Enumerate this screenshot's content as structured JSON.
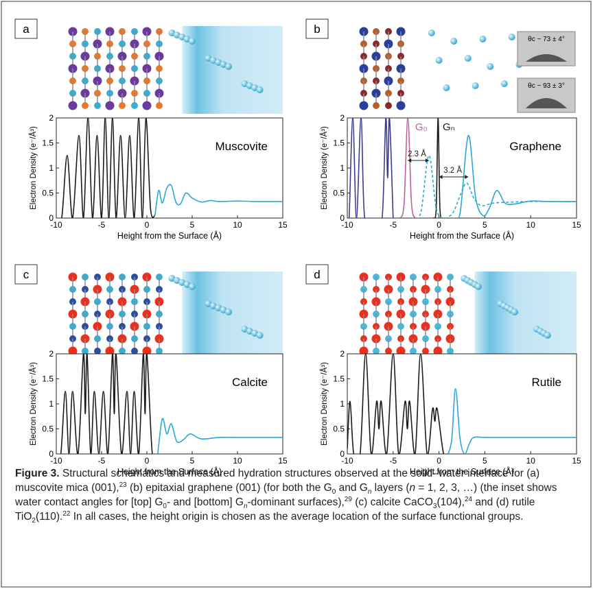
{
  "chart_data": [
    {
      "type": "line",
      "panel_label": "a",
      "annotation": "Muscovite",
      "xlabel": "Height from the Surface (Å)",
      "ylabel": "Electron Density (e⁻/Å³)",
      "xlim": [
        -10,
        15
      ],
      "ylim": [
        0,
        2
      ],
      "xticks": [
        -10,
        -5,
        0,
        5,
        10,
        15
      ],
      "yticks": [
        0,
        0.5,
        1,
        1.5,
        2
      ],
      "series": [
        {
          "color": "#1a1a1a",
          "dash": false,
          "x": [
            -10,
            -9.4,
            -8.8,
            -8.2,
            -7.5,
            -7.0,
            -6.5,
            -6.0,
            -5.5,
            -5.0,
            -4.6,
            -4.2,
            -3.8,
            -3.4,
            -2.9,
            -2.4,
            -1.9,
            -1.4,
            -0.9,
            -0.5,
            -0.1,
            0.4,
            0.9
          ],
          "values": [
            0,
            0,
            1.25,
            0,
            1.65,
            0,
            2,
            0,
            1.65,
            0,
            2,
            0,
            2,
            0,
            1.65,
            0,
            1.65,
            0,
            2,
            0,
            2,
            0.2,
            0.05
          ]
        },
        {
          "color": "#2aa7d8",
          "dash": false,
          "x": [
            0.9,
            1.3,
            1.7,
            2.2,
            2.7,
            3.2,
            3.7,
            4.3,
            5.0,
            6.0,
            7.0,
            8.0,
            10,
            12,
            15
          ],
          "values": [
            0.05,
            0.55,
            0.3,
            0.6,
            0.65,
            0.32,
            0.28,
            0.5,
            0.4,
            0.32,
            0.35,
            0.33,
            0.34,
            0.33,
            0.33
          ]
        }
      ]
    },
    {
      "type": "line",
      "panel_label": "b",
      "annotation": "Graphene",
      "xlabel": "Height from the Surface (Å)",
      "ylabel": "Electron Density (e⁻/Å³)",
      "xlim": [
        -10,
        15
      ],
      "ylim": [
        0,
        2
      ],
      "xticks": [
        -10,
        -5,
        0,
        5,
        10,
        15
      ],
      "yticks": [
        0,
        0.5,
        1,
        1.5,
        2
      ],
      "labels": [
        "G₀",
        "Gₙ",
        "2.3 Å",
        "3.2 Å"
      ],
      "insets": [
        "θc ~ 73 ± 4°",
        "θc ~ 93 ± 3°"
      ],
      "series": [
        {
          "color": "#3b3a8f",
          "dash": false,
          "x": [
            -10,
            -9.8,
            -9.4,
            -9.0,
            -8.5,
            -8.1,
            -7.0,
            -6.2,
            -5.8,
            -5.6,
            -5.4,
            -5.0
          ],
          "values": [
            0,
            0,
            2,
            0,
            2,
            0,
            0,
            0,
            2,
            0.8,
            2,
            0
          ]
        },
        {
          "color": "#c0609a",
          "dash": false,
          "x": [
            -4.2,
            -3.8,
            -3.4,
            -3.0,
            -2.6
          ],
          "values": [
            0,
            0.3,
            2,
            0.3,
            0
          ]
        },
        {
          "color": "#1a1a1a",
          "dash": false,
          "x": [
            -0.6,
            -0.3,
            -0.1,
            0.1,
            0.4
          ],
          "values": [
            0,
            0.2,
            2,
            0.2,
            0
          ]
        },
        {
          "color": "#2aa7d8",
          "dash": true,
          "x": [
            -3.0,
            -2.0,
            -1.1,
            -0.3,
            0.5,
            1.5,
            2.2,
            3.0,
            3.8,
            4.6,
            6.0,
            8.0,
            10,
            15
          ],
          "values": [
            0,
            0.1,
            1.25,
            0.2,
            0,
            0.1,
            0.4,
            0.7,
            0.4,
            0.25,
            0.3,
            0.32,
            0.33,
            0.33
          ]
        },
        {
          "color": "#2aa7d8",
          "dash": false,
          "x": [
            1.5,
            2.3,
            3.2,
            4.0,
            4.8,
            5.5,
            6.3,
            7.2,
            8.2,
            10,
            12,
            15
          ],
          "values": [
            0,
            0.1,
            1.65,
            0.4,
            0.05,
            0.2,
            0.55,
            0.3,
            0.28,
            0.34,
            0.33,
            0.33
          ]
        }
      ]
    },
    {
      "type": "line",
      "panel_label": "c",
      "annotation": "Calcite",
      "xlabel": "Height from the Surface (Å)",
      "ylabel": "Electron Density (e⁻/Å³)",
      "xlim": [
        -10,
        15
      ],
      "ylim": [
        0,
        2
      ],
      "xticks": [
        -10,
        -5,
        0,
        5,
        10,
        15
      ],
      "yticks": [
        0,
        0.5,
        1,
        1.5,
        2
      ],
      "series": [
        {
          "color": "#1a1a1a",
          "dash": false,
          "x": [
            -10,
            -9.5,
            -9.0,
            -8.6,
            -8.2,
            -7.6,
            -7.0,
            -6.8,
            -6.6,
            -6.2,
            -5.8,
            -5.3,
            -4.8,
            -4.3,
            -3.8,
            -3.6,
            -3.4,
            -2.8,
            -2.2,
            -1.8,
            -1.4,
            -0.9,
            -0.4,
            -0.2,
            0,
            0.6,
            1.2
          ],
          "values": [
            0,
            0,
            1.25,
            0,
            1.25,
            0,
            2,
            0.8,
            2,
            0,
            1.25,
            0,
            1.25,
            0,
            2,
            0.8,
            2,
            0,
            1.25,
            0,
            1.25,
            0,
            2,
            0.8,
            2,
            0,
            0
          ]
        },
        {
          "color": "#2aa7d8",
          "dash": false,
          "x": [
            1.2,
            1.7,
            2.2,
            2.7,
            3.3,
            4.0,
            4.8,
            6.0,
            8.0,
            10,
            15
          ],
          "values": [
            0,
            0.7,
            0.4,
            0.6,
            0.25,
            0.28,
            0.4,
            0.3,
            0.33,
            0.33,
            0.33
          ]
        }
      ]
    },
    {
      "type": "line",
      "panel_label": "d",
      "annotation": "Rutile",
      "xlabel": "Height from the Surface (Å)",
      "ylabel": "Electron Density (e⁻/Å³)",
      "xlim": [
        -10,
        15
      ],
      "ylim": [
        0,
        2
      ],
      "xticks": [
        -10,
        -5,
        0,
        5,
        10,
        15
      ],
      "yticks": [
        0,
        0.5,
        1,
        1.5,
        2
      ],
      "series": [
        {
          "color": "#1a1a1a",
          "dash": false,
          "x": [
            -10,
            -9.7,
            -9.3,
            -8.6,
            -8.0,
            -7.4,
            -6.8,
            -6.55,
            -6.3,
            -5.7,
            -5.0,
            -4.4,
            -3.7,
            -3.45,
            -3.2,
            -2.6,
            -2.0,
            -1.3,
            -0.7,
            -0.45,
            -0.2,
            0.5,
            1.0
          ],
          "values": [
            0.1,
            1.05,
            0,
            0,
            2,
            0,
            1.05,
            0.5,
            1.05,
            0,
            2,
            0,
            1.05,
            0.5,
            1.05,
            0,
            2,
            0,
            0.9,
            0.65,
            0.9,
            0,
            0
          ]
        },
        {
          "color": "#2aa7d8",
          "dash": false,
          "x": [
            1.0,
            1.4,
            1.8,
            2.3,
            2.8,
            3.3,
            3.8,
            5.0,
            8.0,
            15
          ],
          "values": [
            0,
            0.3,
            1.3,
            0.3,
            0,
            0.2,
            0.33,
            0.33,
            0.33,
            0.33
          ]
        }
      ]
    }
  ],
  "caption": [
    {
      "text": "Figure 3.",
      "style": "bold"
    },
    {
      "text": " Structural schematics and measured hydration structures observed at the solid–water interface for (a) muscovite mica (001),",
      "style": "normal"
    },
    {
      "text": "23",
      "style": "sup"
    },
    {
      "text": " (b) epitaxial graphene (001) (for both the G",
      "style": "normal"
    },
    {
      "text": "0",
      "style": "sub"
    },
    {
      "text": " and G",
      "style": "normal"
    },
    {
      "text": "n",
      "style": "sub-italic"
    },
    {
      "text": " layers (",
      "style": "normal"
    },
    {
      "text": "n",
      "style": "italic"
    },
    {
      "text": " = 1, 2, 3, …) (the inset shows water contact angles for [top] G",
      "style": "normal"
    },
    {
      "text": "0",
      "style": "sub"
    },
    {
      "text": "- and [bottom] G",
      "style": "normal"
    },
    {
      "text": "n",
      "style": "sub-italic"
    },
    {
      "text": "-dominant surfaces),",
      "style": "normal"
    },
    {
      "text": "29",
      "style": "sup"
    },
    {
      "text": " (c) calcite CaCO",
      "style": "normal"
    },
    {
      "text": "3",
      "style": "sub"
    },
    {
      "text": "(104),",
      "style": "normal"
    },
    {
      "text": "24",
      "style": "sup"
    },
    {
      "text": " and (d) rutile TiO",
      "style": "normal"
    },
    {
      "text": "2",
      "style": "sub"
    },
    {
      "text": "(110).",
      "style": "normal"
    },
    {
      "text": "22",
      "style": "sup"
    },
    {
      "text": " In all cases, the height origin is chosen as the average location of the surface functional groups.",
      "style": "normal"
    }
  ]
}
